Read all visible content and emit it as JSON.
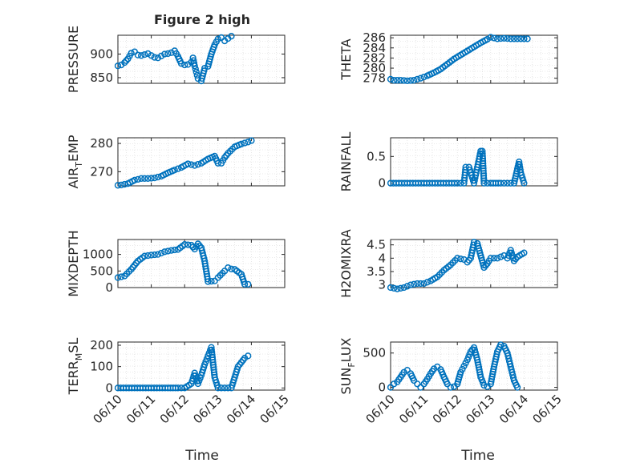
{
  "figure": {
    "title": "Figure 2 high",
    "x_label": "Time",
    "series_color": "#0072bd"
  },
  "chart_data": [
    {
      "type": "scatter",
      "id": "pressure",
      "ylabel": "PRESSURE",
      "xlim": [
        0,
        5
      ],
      "ylim": [
        838,
        940
      ],
      "yticks": [
        850,
        900
      ],
      "ytick_labels": [
        "850",
        "900"
      ],
      "xticks": [
        0,
        1,
        2,
        3,
        4,
        5
      ],
      "show_xtick_labels": false,
      "title": "Figure 2 high",
      "points": [
        [
          0,
          875
        ],
        [
          0.1,
          877
        ],
        [
          0.2,
          882
        ],
        [
          0.3,
          890
        ],
        [
          0.4,
          902
        ],
        [
          0.5,
          905
        ],
        [
          0.6,
          898
        ],
        [
          0.7,
          897
        ],
        [
          0.8,
          899
        ],
        [
          0.9,
          901
        ],
        [
          1,
          897
        ],
        [
          1.1,
          893
        ],
        [
          1.2,
          892
        ],
        [
          1.3,
          896
        ],
        [
          1.4,
          900
        ],
        [
          1.5,
          901
        ],
        [
          1.6,
          903
        ],
        [
          1.7,
          907
        ],
        [
          1.8,
          895
        ],
        [
          1.9,
          880
        ],
        [
          2,
          877
        ],
        [
          2.1,
          878
        ],
        [
          2.2,
          883
        ],
        [
          2.25,
          892
        ],
        [
          2.3,
          875
        ],
        [
          2.35,
          862
        ],
        [
          2.4,
          848
        ],
        [
          2.5,
          843
        ],
        [
          2.6,
          870
        ],
        [
          2.7,
          874
        ],
        [
          2.8,
          900
        ],
        [
          2.9,
          920
        ],
        [
          3,
          932
        ],
        [
          3.1,
          935
        ],
        [
          3.2,
          928
        ],
        [
          3.3,
          933
        ],
        [
          3.4,
          938
        ]
      ]
    },
    {
      "type": "scatter",
      "id": "theta",
      "ylabel": "THETA",
      "xlim": [
        0,
        5
      ],
      "ylim": [
        277,
        286.5
      ],
      "yticks": [
        278,
        280,
        282,
        284,
        286
      ],
      "ytick_labels": [
        "278",
        "280",
        "282",
        "284",
        "286"
      ],
      "xticks": [
        0,
        1,
        2,
        3,
        4,
        5
      ],
      "show_xtick_labels": false,
      "points": [
        [
          0,
          277.8
        ],
        [
          0.1,
          277.6
        ],
        [
          0.3,
          277.6
        ],
        [
          0.5,
          277.5
        ],
        [
          0.7,
          277.6
        ],
        [
          0.9,
          278.0
        ],
        [
          1.1,
          278.5
        ],
        [
          1.3,
          279.1
        ],
        [
          1.5,
          279.8
        ],
        [
          1.7,
          280.8
        ],
        [
          1.9,
          281.8
        ],
        [
          2.1,
          282.6
        ],
        [
          2.3,
          283.4
        ],
        [
          2.5,
          284.2
        ],
        [
          2.7,
          285.0
        ],
        [
          2.9,
          285.7
        ],
        [
          3.0,
          286.1
        ],
        [
          3.2,
          285.8
        ],
        [
          3.4,
          285.9
        ],
        [
          3.6,
          285.8
        ],
        [
          3.8,
          285.8
        ],
        [
          4,
          285.8
        ],
        [
          4.1,
          285.8
        ]
      ]
    },
    {
      "type": "scatter",
      "id": "air-temp",
      "ylabel": "AIR_TEMP",
      "ylabel_main": "AIR",
      "ylabel_sub": "T",
      "ylabel_rest": "EMP",
      "xlim": [
        0,
        5
      ],
      "ylim": [
        265,
        282
      ],
      "yticks": [
        270,
        280
      ],
      "ytick_labels": [
        "270",
        "280"
      ],
      "xticks": [
        0,
        1,
        2,
        3,
        4,
        5
      ],
      "show_xtick_labels": false,
      "points": [
        [
          0,
          265.2
        ],
        [
          0.1,
          265.3
        ],
        [
          0.3,
          265.8
        ],
        [
          0.5,
          267.0
        ],
        [
          0.7,
          267.6
        ],
        [
          0.9,
          267.6
        ],
        [
          1.1,
          267.8
        ],
        [
          1.3,
          268.4
        ],
        [
          1.5,
          269.6
        ],
        [
          1.7,
          270.6
        ],
        [
          1.9,
          271.5
        ],
        [
          2.1,
          272.8
        ],
        [
          2.3,
          272.2
        ],
        [
          2.5,
          273.0
        ],
        [
          2.7,
          274.5
        ],
        [
          2.9,
          275.5
        ],
        [
          3.0,
          273.0
        ],
        [
          3.1,
          273.0
        ],
        [
          3.2,
          275.0
        ],
        [
          3.3,
          276.5
        ],
        [
          3.5,
          278.8
        ],
        [
          3.7,
          279.8
        ],
        [
          3.9,
          280.5
        ],
        [
          4,
          281.0
        ]
      ]
    },
    {
      "type": "scatter",
      "id": "rainfall",
      "ylabel": "RAINFALL",
      "xlim": [
        0,
        5
      ],
      "ylim": [
        -0.05,
        0.85
      ],
      "yticks": [
        0,
        0.5
      ],
      "ytick_labels": [
        "0",
        "0.5"
      ],
      "xticks": [
        0,
        1,
        2,
        3,
        4,
        5
      ],
      "show_xtick_labels": false,
      "points": [
        [
          0,
          0
        ],
        [
          0.5,
          0
        ],
        [
          1,
          0
        ],
        [
          1.5,
          0
        ],
        [
          2,
          0
        ],
        [
          2.2,
          0
        ],
        [
          2.25,
          0.3
        ],
        [
          2.35,
          0.3
        ],
        [
          2.5,
          0
        ],
        [
          2.6,
          0.3
        ],
        [
          2.7,
          0.6
        ],
        [
          2.75,
          0.6
        ],
        [
          2.8,
          0
        ],
        [
          3,
          0
        ],
        [
          3.3,
          0
        ],
        [
          3.5,
          0
        ],
        [
          3.7,
          0
        ],
        [
          3.85,
          0.4
        ],
        [
          3.9,
          0.2
        ],
        [
          4,
          0
        ]
      ]
    },
    {
      "type": "scatter",
      "id": "mixdepth",
      "ylabel": "MIXDEPTH",
      "xlim": [
        0,
        5
      ],
      "ylim": [
        0,
        1450
      ],
      "yticks": [
        0,
        500,
        1000
      ],
      "ytick_labels": [
        "0",
        "500",
        "1000"
      ],
      "xticks": [
        0,
        1,
        2,
        3,
        4,
        5
      ],
      "show_xtick_labels": false,
      "points": [
        [
          0,
          300
        ],
        [
          0.2,
          350
        ],
        [
          0.4,
          550
        ],
        [
          0.6,
          800
        ],
        [
          0.8,
          950
        ],
        [
          1,
          980
        ],
        [
          1.2,
          1000
        ],
        [
          1.4,
          1080
        ],
        [
          1.6,
          1120
        ],
        [
          1.8,
          1150
        ],
        [
          2,
          1300
        ],
        [
          2.2,
          1280
        ],
        [
          2.3,
          1160
        ],
        [
          2.4,
          1320
        ],
        [
          2.5,
          1200
        ],
        [
          2.6,
          800
        ],
        [
          2.7,
          180
        ],
        [
          2.9,
          200
        ],
        [
          3,
          300
        ],
        [
          3.2,
          500
        ],
        [
          3.3,
          600
        ],
        [
          3.4,
          560
        ],
        [
          3.5,
          550
        ],
        [
          3.7,
          400
        ],
        [
          3.8,
          100
        ],
        [
          3.9,
          100
        ]
      ]
    },
    {
      "type": "scatter",
      "id": "h2omixra",
      "ylabel": "H2OMIXRA",
      "xlim": [
        0,
        5
      ],
      "ylim": [
        2.9,
        4.7
      ],
      "yticks": [
        3,
        3.5,
        4,
        4.5
      ],
      "ytick_labels": [
        "3",
        "3.5",
        "4",
        "4.5"
      ],
      "xticks": [
        0,
        1,
        2,
        3,
        4,
        5
      ],
      "show_xtick_labels": false,
      "points": [
        [
          0,
          2.9
        ],
        [
          0.2,
          2.85
        ],
        [
          0.4,
          2.9
        ],
        [
          0.6,
          3.0
        ],
        [
          0.8,
          3.05
        ],
        [
          1,
          3.05
        ],
        [
          1.2,
          3.15
        ],
        [
          1.4,
          3.3
        ],
        [
          1.6,
          3.55
        ],
        [
          1.8,
          3.75
        ],
        [
          2,
          4.0
        ],
        [
          2.2,
          3.95
        ],
        [
          2.3,
          3.85
        ],
        [
          2.4,
          4.0
        ],
        [
          2.5,
          4.6
        ],
        [
          2.6,
          4.55
        ],
        [
          2.7,
          4.1
        ],
        [
          2.8,
          3.65
        ],
        [
          2.9,
          3.8
        ],
        [
          3,
          4.0
        ],
        [
          3.2,
          4.0
        ],
        [
          3.4,
          4.1
        ],
        [
          3.5,
          4.0
        ],
        [
          3.6,
          4.3
        ],
        [
          3.7,
          3.9
        ],
        [
          3.8,
          4.05
        ],
        [
          4,
          4.2
        ]
      ]
    },
    {
      "type": "scatter",
      "id": "terr-msl",
      "ylabel": "TERR_MSL",
      "ylabel_main": "TERR",
      "ylabel_sub": "M",
      "ylabel_rest": "SL",
      "xlim": [
        0,
        5
      ],
      "ylim": [
        -10,
        215
      ],
      "yticks": [
        0,
        100,
        200
      ],
      "ytick_labels": [
        "0",
        "100",
        "200"
      ],
      "xticks": [
        0,
        1,
        2,
        3,
        4,
        5
      ],
      "xtick_labels": [
        "06/10",
        "06/11",
        "06/12",
        "06/13",
        "06/14",
        "06/15"
      ],
      "show_xtick_labels": true,
      "points": [
        [
          0,
          0
        ],
        [
          0.5,
          0
        ],
        [
          1,
          0
        ],
        [
          1.5,
          0
        ],
        [
          1.8,
          0
        ],
        [
          2,
          0
        ],
        [
          2.2,
          20
        ],
        [
          2.3,
          70
        ],
        [
          2.4,
          20
        ],
        [
          2.5,
          60
        ],
        [
          2.6,
          110
        ],
        [
          2.7,
          150
        ],
        [
          2.8,
          190
        ],
        [
          2.9,
          50
        ],
        [
          3,
          0
        ],
        [
          3.2,
          0
        ],
        [
          3.4,
          0
        ],
        [
          3.5,
          50
        ],
        [
          3.6,
          100
        ],
        [
          3.7,
          120
        ],
        [
          3.8,
          140
        ],
        [
          3.9,
          150
        ]
      ]
    },
    {
      "type": "scatter",
      "id": "sun-flux",
      "ylabel": "SUN_FLUX",
      "ylabel_main": "SUN",
      "ylabel_sub": "F",
      "ylabel_rest": "LUX",
      "xlim": [
        0,
        5
      ],
      "ylim": [
        -40,
        660
      ],
      "yticks": [
        0,
        500
      ],
      "ytick_labels": [
        "0",
        "500"
      ],
      "xticks": [
        0,
        1,
        2,
        3,
        4,
        5
      ],
      "xtick_labels": [
        "06/10",
        "06/11",
        "06/12",
        "06/13",
        "06/14",
        "06/15"
      ],
      "show_xtick_labels": true,
      "points": [
        [
          0,
          0
        ],
        [
          0.1,
          50
        ],
        [
          0.2,
          80
        ],
        [
          0.3,
          150
        ],
        [
          0.4,
          220
        ],
        [
          0.5,
          250
        ],
        [
          0.6,
          200
        ],
        [
          0.7,
          100
        ],
        [
          0.8,
          50
        ],
        [
          0.9,
          0
        ],
        [
          1,
          50
        ],
        [
          1.1,
          120
        ],
        [
          1.2,
          200
        ],
        [
          1.3,
          270
        ],
        [
          1.4,
          300
        ],
        [
          1.5,
          260
        ],
        [
          1.6,
          150
        ],
        [
          1.7,
          50
        ],
        [
          1.8,
          0
        ],
        [
          1.9,
          10
        ],
        [
          2,
          50
        ],
        [
          2.1,
          220
        ],
        [
          2.2,
          310
        ],
        [
          2.3,
          400
        ],
        [
          2.4,
          520
        ],
        [
          2.5,
          580
        ],
        [
          2.6,
          400
        ],
        [
          2.7,
          150
        ],
        [
          2.8,
          30
        ],
        [
          2.9,
          10
        ],
        [
          3,
          50
        ],
        [
          3.1,
          300
        ],
        [
          3.2,
          520
        ],
        [
          3.3,
          620
        ],
        [
          3.4,
          600
        ],
        [
          3.5,
          500
        ],
        [
          3.6,
          300
        ],
        [
          3.7,
          100
        ],
        [
          3.8,
          0
        ]
      ]
    }
  ]
}
